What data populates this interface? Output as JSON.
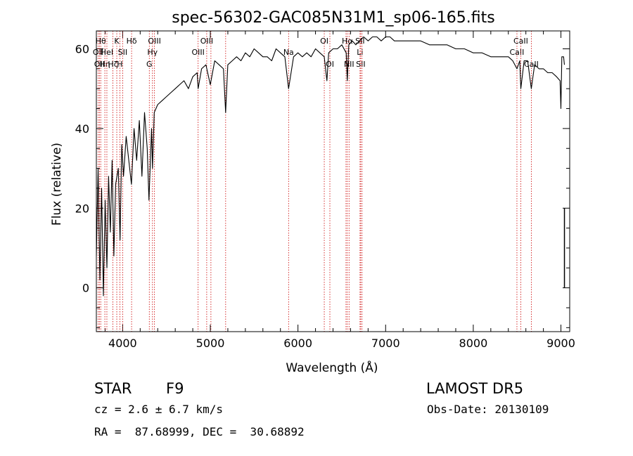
{
  "chart_data": {
    "type": "line",
    "title": "spec-56302-GAC085N31M1_sp06-165.fits",
    "xlabel": "Wavelength (Å)",
    "ylabel": "Flux (relative)",
    "xlim": [
      3700,
      9100
    ],
    "ylim": [
      -11,
      64.5
    ],
    "x_ticks": [
      4000,
      5000,
      6000,
      7000,
      8000,
      9000
    ],
    "y_ticks": [
      0,
      20,
      40,
      60
    ],
    "grid": false,
    "line_color": "#000000",
    "marker_color": "#cc0000",
    "series": [
      {
        "x": [
          3700,
          3720,
          3740,
          3760,
          3780,
          3800,
          3820,
          3840,
          3860,
          3880,
          3900,
          3920,
          3950,
          3970,
          3990,
          4010,
          4040,
          4070,
          4100,
          4130,
          4160,
          4190,
          4220,
          4250,
          4280,
          4300,
          4330,
          4340,
          4360,
          4400,
          4450,
          4500,
          4550,
          4600,
          4650,
          4700,
          4750,
          4800,
          4850,
          4861,
          4900,
          4950,
          5000,
          5050,
          5100,
          5150,
          5175,
          5200,
          5250,
          5300,
          5350,
          5400,
          5450,
          5500,
          5550,
          5600,
          5650,
          5700,
          5750,
          5800,
          5850,
          5893,
          5950,
          6000,
          6050,
          6100,
          6150,
          6200,
          6250,
          6300,
          6330,
          6350,
          6400,
          6450,
          6500,
          6550,
          6563,
          6580,
          6620,
          6660,
          6700,
          6750,
          6800,
          6850,
          6900,
          6950,
          7000,
          7050,
          7100,
          7150,
          7200,
          7300,
          7400,
          7500,
          7600,
          7700,
          7800,
          7900,
          8000,
          8100,
          8200,
          8300,
          8400,
          8450,
          8498,
          8530,
          8542,
          8580,
          8620,
          8662,
          8700,
          8750,
          8800,
          8850,
          8900,
          8950,
          8990,
          9000,
          9010,
          9030,
          9040
        ],
        "y": [
          8,
          30,
          2,
          25,
          -2,
          22,
          5,
          28,
          14,
          32,
          8,
          26,
          30,
          12,
          36,
          28,
          38,
          32,
          26,
          40,
          32,
          42,
          28,
          44,
          35,
          22,
          40,
          30,
          44,
          46,
          47,
          48,
          49,
          50,
          51,
          52,
          50,
          53,
          54,
          50,
          55,
          56,
          51,
          57,
          56,
          55,
          44,
          56,
          57,
          58,
          57,
          59,
          58,
          60,
          59,
          58,
          58,
          57,
          60,
          59,
          58,
          50,
          58,
          59,
          58,
          59,
          58,
          60,
          59,
          58,
          52,
          59,
          60,
          60,
          61,
          59,
          52,
          61,
          62,
          61,
          62,
          63,
          62,
          63,
          63,
          62,
          63,
          63,
          62,
          62,
          62,
          62,
          62,
          61,
          61,
          61,
          60,
          60,
          59,
          59,
          58,
          58,
          58,
          57,
          55,
          57,
          50,
          57,
          57,
          50,
          56,
          55,
          55,
          54,
          54,
          53,
          52,
          45,
          58,
          58,
          56
        ]
      }
    ],
    "spike": {
      "x": 9040,
      "y_range": [
        0,
        20
      ]
    },
    "lines": [
      {
        "x": 3720,
        "labels": [
          "OII"
        ],
        "row": 1
      },
      {
        "x": 3735,
        "labels": [
          "OII"
        ],
        "row": 2
      },
      {
        "x": 3750,
        "labels": [
          "Hθ"
        ],
        "row": 0
      },
      {
        "x": 3797,
        "labels": [
          "Hη"
        ],
        "row": 2
      },
      {
        "x": 3820,
        "labels": [
          "HeI"
        ],
        "row": 1
      },
      {
        "x": 3889,
        "labels": [
          "Hζ"
        ],
        "row": 2
      },
      {
        "x": 3933,
        "labels": [
          "K"
        ],
        "row": 0
      },
      {
        "x": 3968,
        "labels": [
          "H"
        ],
        "row": 2
      },
      {
        "x": 4000,
        "labels": [
          "SII"
        ],
        "row": 1
      },
      {
        "x": 4102,
        "labels": [
          "Hδ"
        ],
        "row": 0
      },
      {
        "x": 4304,
        "labels": [
          "G"
        ],
        "row": 2
      },
      {
        "x": 4340,
        "labels": [
          "Hγ"
        ],
        "row": 1
      },
      {
        "x": 4363,
        "labels": [
          "OIII"
        ],
        "row": 0
      },
      {
        "x": 4861,
        "labels": [
          "OIII"
        ],
        "row": 1
      },
      {
        "x": 4959,
        "labels": [
          "OIII"
        ],
        "row": 0
      },
      {
        "x": 5007,
        "labels": [],
        "row": 0
      },
      {
        "x": 5175,
        "labels": [],
        "row": 0
      },
      {
        "x": 5893,
        "labels": [
          "Na"
        ],
        "row": 1
      },
      {
        "x": 6300,
        "labels": [
          "OI"
        ],
        "row": 0
      },
      {
        "x": 6364,
        "labels": [
          "OI"
        ],
        "row": 2
      },
      {
        "x": 6548,
        "labels": [],
        "row": 0
      },
      {
        "x": 6563,
        "labels": [
          "Hα"
        ],
        "row": 0
      },
      {
        "x": 6583,
        "labels": [
          "NII"
        ],
        "row": 2
      },
      {
        "x": 6708,
        "labels": [
          "SII",
          "Li"
        ],
        "row": 0
      },
      {
        "x": 6716,
        "labels": [
          "SII"
        ],
        "row": 2
      },
      {
        "x": 6731,
        "labels": [],
        "row": 0
      },
      {
        "x": 8498,
        "labels": [
          "CaII"
        ],
        "row": 1
      },
      {
        "x": 8542,
        "labels": [
          "CaII"
        ],
        "row": 0
      },
      {
        "x": 8662,
        "labels": [
          "CaII"
        ],
        "row": 2
      }
    ]
  },
  "info": {
    "object_class": "STAR",
    "subclass": "F9",
    "survey": "LAMOST DR5",
    "redshift_line": "cz = 2.6 ± 6.7 km/s",
    "obs_date": "Obs-Date: 20130109",
    "coords": "RA =  87.68999, DEC =  30.68892"
  }
}
